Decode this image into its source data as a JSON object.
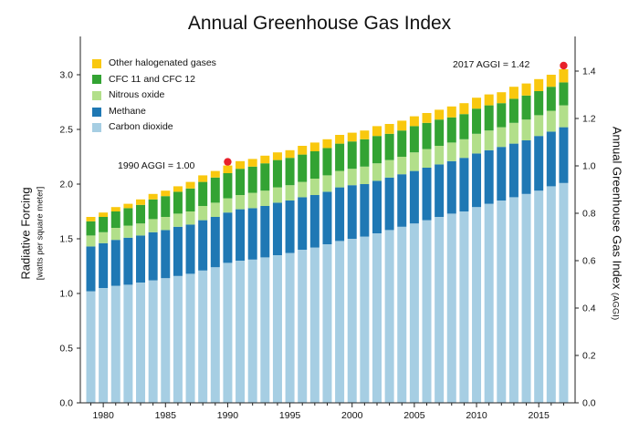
{
  "chart_data": {
    "type": "bar",
    "stacked": true,
    "title": "Annual Greenhouse Gas Index",
    "ylabel": "Radiative Forcing",
    "ylabel_sub": "[watts per square meter]",
    "y2label": "Annual Greenhouse Gas Index",
    "y2label_sub": "(AGGI)",
    "ylim": [
      0,
      3.3
    ],
    "y2lim": [
      0,
      1.5
    ],
    "yticks": [
      "0.0",
      "0.5",
      "1.0",
      "1.5",
      "2.0",
      "2.5",
      "3.0"
    ],
    "y2ticks": [
      "0.0",
      "0.2",
      "0.4",
      "0.6",
      "0.8",
      "1.0",
      "1.2",
      "1.4"
    ],
    "xticks": [
      "1980",
      "1985",
      "1990",
      "1995",
      "2000",
      "2005",
      "2010",
      "2015"
    ],
    "legend_position": "top-left",
    "colors": {
      "Other halogenated gases": "#f9c80e",
      "CFC 11 and CFC 12": "#33a333",
      "Nitrous oxide": "#b2df8a",
      "Methane": "#1f78b4",
      "Carbon dioxide": "#a6cee3"
    },
    "legend": [
      "Other halogenated gases",
      "CFC 11 and CFC 12",
      "Nitrous oxide",
      "Methane",
      "Carbon dioxide"
    ],
    "x": [
      1979,
      1980,
      1981,
      1982,
      1983,
      1984,
      1985,
      1986,
      1987,
      1988,
      1989,
      1990,
      1991,
      1992,
      1993,
      1994,
      1995,
      1996,
      1997,
      1998,
      1999,
      2000,
      2001,
      2002,
      2003,
      2004,
      2005,
      2006,
      2007,
      2008,
      2009,
      2010,
      2011,
      2012,
      2013,
      2014,
      2015,
      2016,
      2017
    ],
    "series": [
      {
        "name": "Carbon dioxide",
        "values": [
          1.02,
          1.05,
          1.07,
          1.08,
          1.1,
          1.12,
          1.14,
          1.16,
          1.18,
          1.21,
          1.24,
          1.28,
          1.3,
          1.31,
          1.33,
          1.35,
          1.37,
          1.4,
          1.42,
          1.45,
          1.48,
          1.5,
          1.52,
          1.55,
          1.58,
          1.61,
          1.64,
          1.67,
          1.7,
          1.73,
          1.75,
          1.79,
          1.82,
          1.85,
          1.88,
          1.91,
          1.94,
          1.98,
          2.01
        ]
      },
      {
        "name": "Methane",
        "values": [
          0.41,
          0.41,
          0.42,
          0.43,
          0.43,
          0.44,
          0.44,
          0.45,
          0.45,
          0.46,
          0.46,
          0.46,
          0.47,
          0.47,
          0.47,
          0.48,
          0.48,
          0.48,
          0.48,
          0.48,
          0.49,
          0.49,
          0.48,
          0.48,
          0.48,
          0.48,
          0.48,
          0.48,
          0.48,
          0.48,
          0.49,
          0.49,
          0.49,
          0.49,
          0.49,
          0.49,
          0.5,
          0.5,
          0.51
        ]
      },
      {
        "name": "Nitrous oxide",
        "values": [
          0.1,
          0.1,
          0.11,
          0.11,
          0.11,
          0.12,
          0.12,
          0.12,
          0.12,
          0.13,
          0.13,
          0.13,
          0.13,
          0.14,
          0.14,
          0.14,
          0.14,
          0.14,
          0.15,
          0.15,
          0.15,
          0.15,
          0.16,
          0.16,
          0.16,
          0.16,
          0.17,
          0.17,
          0.17,
          0.17,
          0.17,
          0.18,
          0.18,
          0.18,
          0.19,
          0.19,
          0.19,
          0.19,
          0.2
        ]
      },
      {
        "name": "CFC 11 and CFC 12",
        "values": [
          0.13,
          0.14,
          0.15,
          0.16,
          0.17,
          0.18,
          0.19,
          0.2,
          0.21,
          0.22,
          0.23,
          0.23,
          0.24,
          0.24,
          0.25,
          0.25,
          0.25,
          0.25,
          0.25,
          0.25,
          0.25,
          0.25,
          0.25,
          0.25,
          0.24,
          0.24,
          0.24,
          0.24,
          0.24,
          0.23,
          0.23,
          0.23,
          0.23,
          0.22,
          0.22,
          0.22,
          0.22,
          0.22,
          0.21
        ]
      },
      {
        "name": "Other halogenated gases",
        "values": [
          0.04,
          0.04,
          0.04,
          0.04,
          0.05,
          0.05,
          0.05,
          0.05,
          0.06,
          0.06,
          0.06,
          0.07,
          0.07,
          0.07,
          0.07,
          0.07,
          0.07,
          0.08,
          0.08,
          0.08,
          0.08,
          0.08,
          0.08,
          0.09,
          0.09,
          0.09,
          0.09,
          0.09,
          0.09,
          0.1,
          0.1,
          0.1,
          0.1,
          0.1,
          0.11,
          0.11,
          0.11,
          0.11,
          0.12
        ]
      }
    ],
    "annotations": [
      {
        "text": "1990 AGGI = 1.00",
        "year": 1990
      },
      {
        "text": "2017 AGGI = 1.42",
        "year": 2017
      }
    ],
    "marker_color": "#e8202a"
  }
}
